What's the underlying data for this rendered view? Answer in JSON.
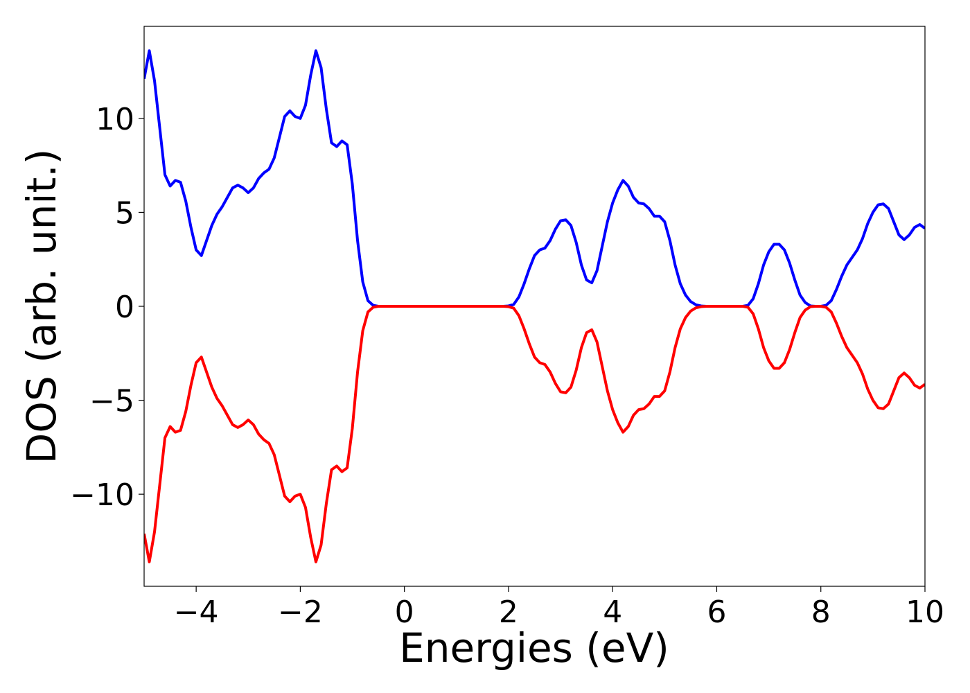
{
  "chart_data": {
    "type": "line",
    "xlabel": "Energies (eV)",
    "ylabel": "DOS (arb. unit.)",
    "xlim": [
      -5,
      10
    ],
    "ylim": [
      -14.9,
      14.9
    ],
    "xticks": [
      {
        "value": -4,
        "label": "−4"
      },
      {
        "value": -2,
        "label": "−2"
      },
      0,
      2,
      4,
      6,
      8,
      10
    ],
    "yticks": [
      {
        "value": -10,
        "label": "−10"
      },
      {
        "value": -5,
        "label": "−5"
      },
      0,
      5,
      10
    ],
    "x": [
      -5,
      -4.9,
      -4.8,
      -4.7,
      -4.6,
      -4.5,
      -4.4,
      -4.3,
      -4.2,
      -4.1,
      -4,
      -3.9,
      -3.8,
      -3.7,
      -3.6,
      -3.5,
      -3.4,
      -3.3,
      -3.2,
      -3.1,
      -3,
      -2.9,
      -2.8,
      -2.7,
      -2.6,
      -2.5,
      -2.4,
      -2.3,
      -2.2,
      -2.1,
      -2,
      -1.9,
      -1.8,
      -1.7,
      -1.6,
      -1.5,
      -1.4,
      -1.3,
      -1.2,
      -1.1,
      -1,
      -0.9,
      -0.8,
      -0.7,
      -0.6,
      -0.5,
      -0.4,
      -0.3,
      -0.2,
      -0.1,
      0,
      0.1,
      0.2,
      0.3,
      0.4,
      0.5,
      0.6,
      0.7,
      0.8,
      0.9,
      1,
      1.1,
      1.2,
      1.3,
      1.4,
      1.5,
      1.6,
      1.7,
      1.8,
      1.9,
      2,
      2.1,
      2.2,
      2.3,
      2.4,
      2.5,
      2.6,
      2.7,
      2.8,
      2.9,
      3,
      3.1,
      3.2,
      3.3,
      3.4,
      3.5,
      3.6,
      3.7,
      3.8,
      3.9,
      4,
      4.1,
      4.2,
      4.3,
      4.4,
      4.5,
      4.6,
      4.7,
      4.8,
      4.9,
      5,
      5.1,
      5.2,
      5.3,
      5.4,
      5.5,
      5.6,
      5.7,
      5.8,
      5.9,
      6,
      6.1,
      6.2,
      6.3,
      6.4,
      6.5,
      6.6,
      6.7,
      6.8,
      6.9,
      7,
      7.1,
      7.2,
      7.3,
      7.4,
      7.5,
      7.6,
      7.7,
      7.8,
      7.9,
      8,
      8.1,
      8.2,
      8.3,
      8.4,
      8.5,
      8.6,
      8.7,
      8.8,
      8.9,
      9,
      9.1,
      9.2,
      9.3,
      9.4,
      9.5,
      9.6,
      9.7,
      9.8,
      9.9,
      10
    ],
    "series": [
      {
        "color": "#0000ff",
        "values": [
          12.1,
          13.6,
          12.0,
          9.5,
          7.0,
          6.4,
          6.7,
          6.6,
          5.6,
          4.2,
          3.0,
          2.7,
          3.5,
          4.3,
          4.9,
          5.3,
          5.8,
          6.3,
          6.45,
          6.3,
          6.05,
          6.3,
          6.8,
          7.1,
          7.3,
          7.9,
          9.0,
          10.1,
          10.4,
          10.1,
          10.0,
          10.7,
          12.3,
          13.6,
          12.7,
          10.5,
          8.7,
          8.5,
          8.8,
          8.6,
          6.5,
          3.5,
          1.3,
          0.3,
          0.05,
          0,
          0,
          0,
          0,
          0,
          0,
          0,
          0,
          0,
          0,
          0,
          0,
          0,
          0,
          0,
          0,
          0,
          0,
          0,
          0,
          0,
          0,
          0,
          0,
          0,
          0.02,
          0.1,
          0.5,
          1.2,
          2.0,
          2.7,
          3.0,
          3.1,
          3.5,
          4.1,
          4.55,
          4.6,
          4.3,
          3.4,
          2.2,
          1.4,
          1.25,
          1.9,
          3.2,
          4.5,
          5.5,
          6.2,
          6.7,
          6.4,
          5.8,
          5.5,
          5.45,
          5.2,
          4.8,
          4.8,
          4.5,
          3.5,
          2.2,
          1.2,
          0.6,
          0.25,
          0.08,
          0.02,
          0,
          0,
          0,
          0,
          0,
          0,
          0,
          0,
          0.05,
          0.4,
          1.2,
          2.2,
          2.9,
          3.3,
          3.3,
          3.0,
          2.3,
          1.4,
          0.6,
          0.2,
          0.02,
          0,
          0,
          0.05,
          0.3,
          0.9,
          1.6,
          2.2,
          2.6,
          3.0,
          3.6,
          4.4,
          5.0,
          5.4,
          5.45,
          5.2,
          4.5,
          3.8,
          3.55,
          3.8,
          4.2,
          4.35,
          4.15
        ]
      },
      {
        "color": "#ff0000",
        "values": [
          -12.1,
          -13.6,
          -12.0,
          -9.5,
          -7.0,
          -6.4,
          -6.7,
          -6.6,
          -5.6,
          -4.2,
          -3.0,
          -2.7,
          -3.5,
          -4.3,
          -4.9,
          -5.3,
          -5.8,
          -6.3,
          -6.45,
          -6.3,
          -6.05,
          -6.3,
          -6.8,
          -7.1,
          -7.3,
          -7.9,
          -9.0,
          -10.1,
          -10.4,
          -10.1,
          -10.0,
          -10.7,
          -12.3,
          -13.6,
          -12.7,
          -10.5,
          -8.7,
          -8.5,
          -8.8,
          -8.6,
          -6.5,
          -3.5,
          -1.3,
          -0.3,
          -0.05,
          0,
          0,
          0,
          0,
          0,
          0,
          0,
          0,
          0,
          0,
          0,
          0,
          0,
          0,
          0,
          0,
          0,
          0,
          0,
          0,
          0,
          0,
          0,
          0,
          0,
          -0.02,
          -0.1,
          -0.5,
          -1.2,
          -2.0,
          -2.7,
          -3.0,
          -3.1,
          -3.5,
          -4.1,
          -4.55,
          -4.6,
          -4.3,
          -3.4,
          -2.2,
          -1.4,
          -1.25,
          -1.9,
          -3.2,
          -4.5,
          -5.5,
          -6.2,
          -6.7,
          -6.4,
          -5.8,
          -5.5,
          -5.45,
          -5.2,
          -4.8,
          -4.8,
          -4.5,
          -3.5,
          -2.2,
          -1.2,
          -0.6,
          -0.25,
          -0.08,
          -0.02,
          0,
          0,
          0,
          0,
          0,
          0,
          0,
          0,
          -0.05,
          -0.4,
          -1.2,
          -2.2,
          -2.9,
          -3.3,
          -3.3,
          -3.0,
          -2.3,
          -1.4,
          -0.6,
          -0.2,
          -0.02,
          0,
          0,
          -0.05,
          -0.3,
          -0.9,
          -1.6,
          -2.2,
          -2.6,
          -3.0,
          -3.6,
          -4.4,
          -5.0,
          -5.4,
          -5.45,
          -5.2,
          -4.5,
          -3.8,
          -3.55,
          -3.8,
          -4.2,
          -4.35,
          -4.15
        ]
      }
    ]
  }
}
